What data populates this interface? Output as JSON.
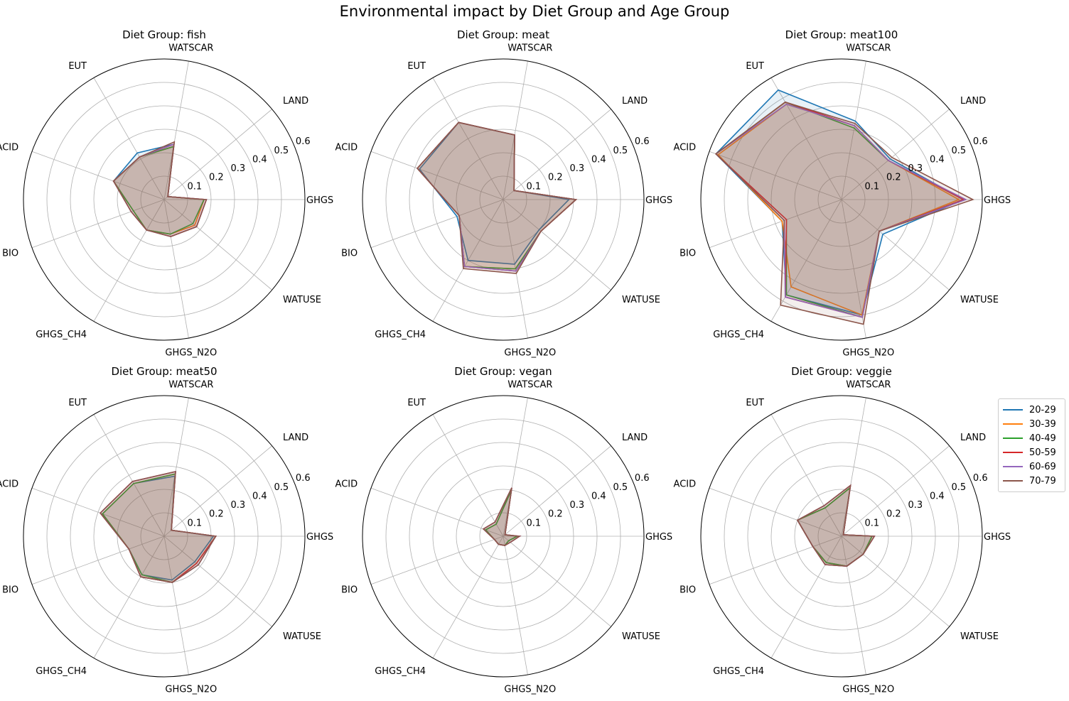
{
  "title": "Environmental impact by Diet Group and Age Group",
  "chart_data": {
    "type": "radar",
    "axes": [
      "GHGS",
      "LAND",
      "WATSCAR",
      "EUT",
      "ACID",
      "BIO",
      "GHGS_CH4",
      "GHGS_N2O",
      "WATUSE"
    ],
    "radial_ticks": [
      0.1,
      0.2,
      0.3,
      0.4,
      0.5,
      0.6
    ],
    "rlim": [
      0,
      0.6
    ],
    "grid": true,
    "legend_placement": "right",
    "series_names": [
      "20-29",
      "30-39",
      "40-49",
      "50-59",
      "60-69",
      "70-79"
    ],
    "colors": [
      "#1f77b4",
      "#ff7f0e",
      "#2ca02c",
      "#d62728",
      "#9467bd",
      "#8c564b"
    ],
    "panels": [
      {
        "title": "Diet Group: fish",
        "series": [
          {
            "name": "20-29",
            "values": [
              0.17,
              0.02,
              0.24,
              0.23,
              0.23,
              0.14,
              0.15,
              0.15,
              0.17
            ]
          },
          {
            "name": "30-39",
            "values": [
              0.17,
              0.02,
              0.23,
              0.21,
              0.23,
              0.14,
              0.15,
              0.15,
              0.17
            ]
          },
          {
            "name": "40-49",
            "values": [
              0.17,
              0.02,
              0.23,
              0.21,
              0.23,
              0.14,
              0.15,
              0.15,
              0.16
            ]
          },
          {
            "name": "50-59",
            "values": [
              0.18,
              0.02,
              0.24,
              0.21,
              0.23,
              0.15,
              0.15,
              0.16,
              0.18
            ]
          },
          {
            "name": "60-69",
            "values": [
              0.18,
              0.02,
              0.24,
              0.21,
              0.23,
              0.15,
              0.15,
              0.16,
              0.18
            ]
          },
          {
            "name": "70-79",
            "values": [
              0.18,
              0.02,
              0.25,
              0.21,
              0.23,
              0.15,
              0.15,
              0.16,
              0.18
            ]
          }
        ]
      },
      {
        "title": "Diet Group: meat",
        "series": [
          {
            "name": "20-29",
            "values": [
              0.28,
              0.06,
              0.28,
              0.38,
              0.38,
              0.21,
              0.3,
              0.28,
              0.2
            ]
          },
          {
            "name": "30-39",
            "values": [
              0.31,
              0.06,
              0.28,
              0.38,
              0.39,
              0.2,
              0.33,
              0.3,
              0.21
            ]
          },
          {
            "name": "40-49",
            "values": [
              0.31,
              0.06,
              0.28,
              0.38,
              0.39,
              0.2,
              0.33,
              0.3,
              0.21
            ]
          },
          {
            "name": "50-59",
            "values": [
              0.31,
              0.06,
              0.28,
              0.38,
              0.39,
              0.2,
              0.33,
              0.31,
              0.21
            ]
          },
          {
            "name": "60-69",
            "values": [
              0.31,
              0.06,
              0.28,
              0.38,
              0.39,
              0.2,
              0.33,
              0.31,
              0.21
            ]
          },
          {
            "name": "70-79",
            "values": [
              0.31,
              0.06,
              0.28,
              0.38,
              0.39,
              0.2,
              0.34,
              0.32,
              0.21
            ]
          }
        ]
      },
      {
        "title": "Diet Group: meat100",
        "series": [
          {
            "name": "20-29",
            "values": [
              0.52,
              0.27,
              0.34,
              0.54,
              0.57,
              0.27,
              0.47,
              0.5,
              0.23
            ]
          },
          {
            "name": "30-39",
            "values": [
              0.5,
              0.26,
              0.32,
              0.47,
              0.56,
              0.27,
              0.43,
              0.5,
              0.21
            ]
          },
          {
            "name": "40-49",
            "values": [
              0.52,
              0.26,
              0.31,
              0.48,
              0.57,
              0.25,
              0.47,
              0.51,
              0.21
            ]
          },
          {
            "name": "50-59",
            "values": [
              0.52,
              0.26,
              0.32,
              0.48,
              0.57,
              0.25,
              0.48,
              0.51,
              0.21
            ]
          },
          {
            "name": "60-69",
            "values": [
              0.53,
              0.26,
              0.32,
              0.47,
              0.57,
              0.26,
              0.48,
              0.51,
              0.21
            ]
          },
          {
            "name": "70-79",
            "values": [
              0.56,
              0.28,
              0.33,
              0.48,
              0.57,
              0.26,
              0.52,
              0.54,
              0.21
            ]
          }
        ]
      },
      {
        "title": "Diet Group: meat50",
        "series": [
          {
            "name": "20-29",
            "values": [
              0.21,
              0.04,
              0.26,
              0.26,
              0.28,
              0.16,
              0.19,
              0.19,
              0.17
            ]
          },
          {
            "name": "30-39",
            "values": [
              0.22,
              0.04,
              0.27,
              0.26,
              0.28,
              0.16,
              0.2,
              0.2,
              0.18
            ]
          },
          {
            "name": "40-49",
            "values": [
              0.22,
              0.04,
              0.27,
              0.26,
              0.28,
              0.16,
              0.19,
              0.2,
              0.18
            ]
          },
          {
            "name": "50-59",
            "values": [
              0.22,
              0.04,
              0.28,
              0.27,
              0.29,
              0.16,
              0.2,
              0.2,
              0.18
            ]
          },
          {
            "name": "60-69",
            "values": [
              0.22,
              0.04,
              0.28,
              0.27,
              0.29,
              0.16,
              0.2,
              0.2,
              0.19
            ]
          },
          {
            "name": "70-79",
            "values": [
              0.22,
              0.04,
              0.28,
              0.27,
              0.29,
              0.16,
              0.2,
              0.2,
              0.19
            ]
          }
        ]
      },
      {
        "title": "Diet Group: vegan",
        "series": [
          {
            "name": "20-29",
            "values": [
              0.06,
              0.01,
              0.2,
              0.06,
              0.08,
              0.04,
              0.04,
              0.04,
              0.03
            ]
          },
          {
            "name": "30-39",
            "values": [
              0.06,
              0.01,
              0.2,
              0.06,
              0.08,
              0.04,
              0.04,
              0.04,
              0.03
            ]
          },
          {
            "name": "40-49",
            "values": [
              0.06,
              0.01,
              0.2,
              0.06,
              0.08,
              0.04,
              0.04,
              0.04,
              0.03
            ]
          },
          {
            "name": "50-59",
            "values": [
              0.07,
              0.01,
              0.21,
              0.07,
              0.09,
              0.04,
              0.04,
              0.04,
              0.04
            ]
          },
          {
            "name": "60-69",
            "values": [
              0.07,
              0.01,
              0.21,
              0.07,
              0.09,
              0.04,
              0.04,
              0.04,
              0.04
            ]
          },
          {
            "name": "70-79",
            "values": [
              0.07,
              0.01,
              0.21,
              0.07,
              0.09,
              0.04,
              0.04,
              0.04,
              0.04
            ]
          }
        ]
      },
      {
        "title": "Diet Group: veggie",
        "series": [
          {
            "name": "20-29",
            "values": [
              0.13,
              0.01,
              0.21,
              0.14,
              0.2,
              0.13,
              0.13,
              0.13,
              0.12
            ]
          },
          {
            "name": "30-39",
            "values": [
              0.13,
              0.01,
              0.21,
              0.14,
              0.2,
              0.13,
              0.13,
              0.13,
              0.12
            ]
          },
          {
            "name": "40-49",
            "values": [
              0.13,
              0.01,
              0.21,
              0.14,
              0.2,
              0.13,
              0.13,
              0.13,
              0.12
            ]
          },
          {
            "name": "50-59",
            "values": [
              0.14,
              0.01,
              0.22,
              0.15,
              0.2,
              0.13,
              0.14,
              0.13,
              0.12
            ]
          },
          {
            "name": "60-69",
            "values": [
              0.14,
              0.01,
              0.22,
              0.15,
              0.2,
              0.13,
              0.14,
              0.13,
              0.12
            ]
          },
          {
            "name": "70-79",
            "values": [
              0.14,
              0.01,
              0.22,
              0.15,
              0.2,
              0.13,
              0.14,
              0.13,
              0.12
            ]
          }
        ]
      }
    ]
  }
}
